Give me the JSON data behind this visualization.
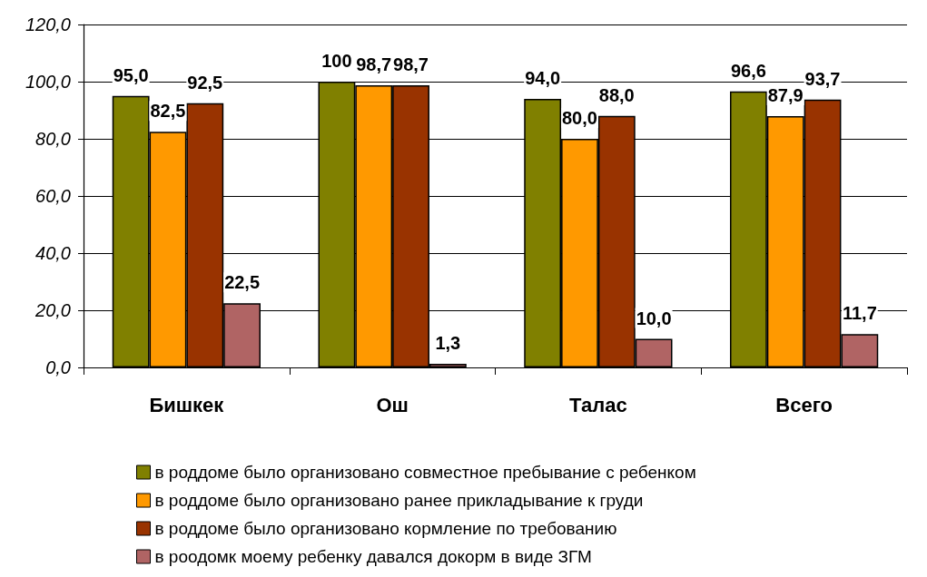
{
  "chart_data": {
    "type": "bar",
    "categories": [
      "Бишкек",
      "Ош",
      "Талас",
      "Всего"
    ],
    "series": [
      {
        "name": "в роддоме было организовано совместное пребывание с ребенком",
        "color": "#808000",
        "values": [
          95.0,
          100,
          94.0,
          96.6
        ],
        "value_labels": [
          "95,0",
          "100",
          "94,0",
          "96,6"
        ]
      },
      {
        "name": "в роддоме было организовано ранее прикладывание к груди",
        "color": "#ff9900",
        "values": [
          82.5,
          98.7,
          80.0,
          87.9
        ],
        "value_labels": [
          "82,5",
          "98,7",
          "80,0",
          "87,9"
        ]
      },
      {
        "name": "в роддоме было организовано кормление по требованию",
        "color": "#993300",
        "values": [
          92.5,
          98.7,
          88.0,
          93.7
        ],
        "value_labels": [
          "92,5",
          "98,7",
          "88,0",
          "93,7"
        ]
      },
      {
        "name": "в роодомк моему ребенку давался докорм в виде ЗГМ",
        "color": "#b06464",
        "values": [
          22.5,
          1.3,
          10.0,
          11.7
        ],
        "value_labels": [
          "22,5",
          "1,3",
          "10,0",
          "11,7"
        ]
      }
    ],
    "ylim": [
      0,
      120
    ],
    "yticks": [
      {
        "value": 0,
        "label": "0,0"
      },
      {
        "value": 20,
        "label": "20,0"
      },
      {
        "value": 40,
        "label": "40,0"
      },
      {
        "value": 60,
        "label": "60,0"
      },
      {
        "value": 80,
        "label": "80,0"
      },
      {
        "value": 100,
        "label": "100,0"
      },
      {
        "value": 120,
        "label": "120,0"
      }
    ],
    "grid": "y",
    "legend": "bottom"
  }
}
